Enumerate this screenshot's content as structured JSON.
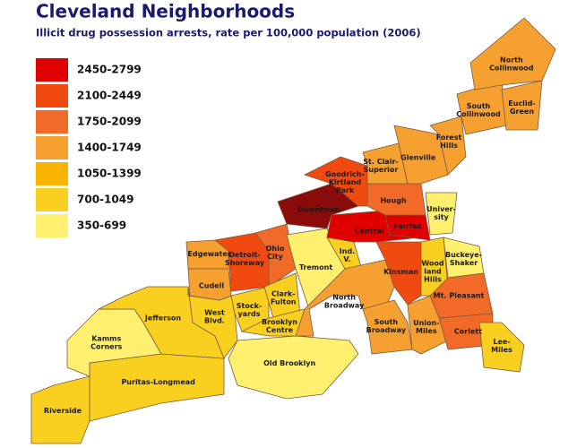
{
  "title": "Cleveland Neighborhoods",
  "subtitle": "Illicit drug possession arrests, rate per 100,000 population (2006)",
  "legend": [
    {
      "label": "2450-2799",
      "color": "#e00000"
    },
    {
      "label": "2100-2449",
      "color": "#f04a10"
    },
    {
      "label": "1750-2099",
      "color": "#f26a28"
    },
    {
      "label": "1400-1749",
      "color": "#f5a030"
    },
    {
      "label": "1050-1399",
      "color": "#f8b400"
    },
    {
      "label": "700-1049",
      "color": "#fad020"
    },
    {
      "label": "350-699",
      "color": "#fff070"
    }
  ],
  "neighborhoods": [
    {
      "label_lines": [
        "Riverside"
      ],
      "class": 5
    },
    {
      "label_lines": [
        "Puritas-Longmead"
      ],
      "class": 5
    },
    {
      "label_lines": [
        "Kamms",
        "Corners"
      ],
      "class": 6
    },
    {
      "label_lines": [
        "Jefferson"
      ],
      "class": 5
    },
    {
      "label_lines": [
        "Old Brooklyn"
      ],
      "class": 6
    },
    {
      "label_lines": [
        "West",
        "Blvd."
      ],
      "class": 5
    },
    {
      "label_lines": [
        "Edgewater"
      ],
      "class": 3
    },
    {
      "label_lines": [
        "Cudell"
      ],
      "class": 3
    },
    {
      "label_lines": [
        "Detroit-",
        "Shoreway"
      ],
      "class": 1
    },
    {
      "label_lines": [
        "Ohio",
        "City"
      ],
      "class": 2
    },
    {
      "label_lines": [
        "Stock-",
        "yards"
      ],
      "class": 5
    },
    {
      "label_lines": [
        "Clark-",
        "Fulton"
      ],
      "class": 5
    },
    {
      "label_lines": [
        "Brooklyn",
        "Centre"
      ],
      "class": 5
    },
    {
      "label_lines": [
        "Tremont"
      ],
      "class": 6
    },
    {
      "label_lines": [
        "Ind.",
        "V."
      ],
      "class": 5
    },
    {
      "label_lines": [
        "North",
        "Broadway"
      ],
      "class": 3
    },
    {
      "label_lines": [
        "South",
        "Broadway"
      ],
      "class": 3
    },
    {
      "label_lines": [
        "Kinsman"
      ],
      "class": 1
    },
    {
      "label_lines": [
        "Central"
      ],
      "class": 0
    },
    {
      "label_lines": [
        "Downtown"
      ],
      "color": "#8b0a0a"
    },
    {
      "label_lines": [
        "Goodrich-",
        "Kirtland",
        "Park"
      ],
      "class": 1
    },
    {
      "label_lines": [
        "Fairfax"
      ],
      "class": 0
    },
    {
      "label_lines": [
        "Hough"
      ],
      "class": 2
    },
    {
      "label_lines": [
        "St. Clair-",
        "Superior"
      ],
      "class": 3
    },
    {
      "label_lines": [
        "Glenville"
      ],
      "class": 3
    },
    {
      "label_lines": [
        "Univer-",
        "sity"
      ],
      "class": 6
    },
    {
      "label_lines": [
        "Forest",
        "Hills"
      ],
      "class": 3
    },
    {
      "label_lines": [
        "Buckeye-",
        "Shaker"
      ],
      "class": 6
    },
    {
      "label_lines": [
        "Wood",
        "land",
        "Hills"
      ],
      "class": 5
    },
    {
      "label_lines": [
        "Mt. Pleasant"
      ],
      "class": 2
    },
    {
      "label_lines": [
        "Union-",
        "Miles"
      ],
      "class": 3
    },
    {
      "label_lines": [
        "Corlett"
      ],
      "class": 2
    },
    {
      "label_lines": [
        "Lee-",
        "Miles"
      ],
      "class": 5
    },
    {
      "label_lines": [
        "South",
        "Collinwood"
      ],
      "class": 3
    },
    {
      "label_lines": [
        "Euclid-",
        "Green"
      ],
      "class": 3
    },
    {
      "label_lines": [
        "North",
        "Collinwood"
      ],
      "class": 3
    }
  ]
}
